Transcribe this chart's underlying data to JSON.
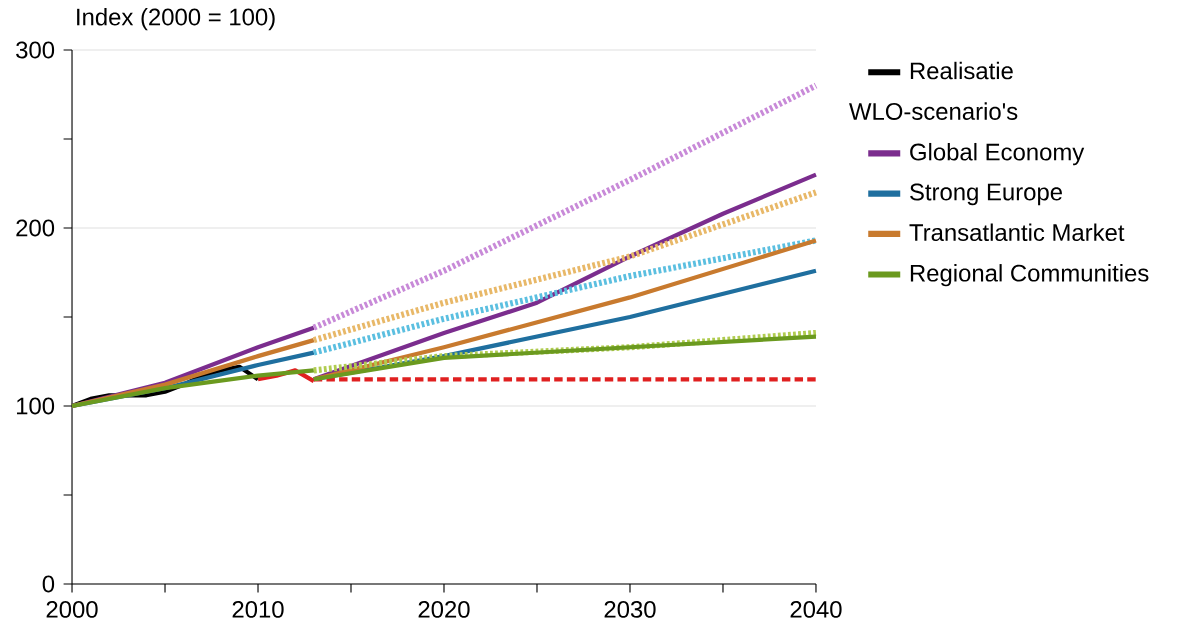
{
  "chart_data": {
    "type": "line",
    "ylabel": "Index (2000 = 100)",
    "legend_title": "WLO-scenario's",
    "legend": "right",
    "grid": "y",
    "xlim": [
      2000,
      2040
    ],
    "ylim": [
      0,
      300
    ],
    "xticks": [
      2000,
      {
        "value": 2005,
        "label": null
      },
      2010,
      {
        "value": 2015,
        "label": null
      },
      2020,
      {
        "value": 2025,
        "label": null
      },
      2030,
      {
        "value": 2035,
        "label": null
      },
      2040
    ],
    "yticks": [
      0,
      {
        "value": 50,
        "label": null
      },
      100,
      {
        "value": 150,
        "label": null
      },
      200,
      {
        "value": 250,
        "label": null
      },
      300
    ],
    "series": [
      {
        "name": "Realisatie",
        "color": "#000000",
        "x": [
          2000,
          2001,
          2002,
          2003,
          2004,
          2005,
          2006,
          2007,
          2008,
          2009,
          2010
        ],
        "values": [
          100,
          104,
          106,
          106,
          106,
          108,
          112,
          117,
          120,
          122,
          115
        ]
      },
      {
        "color": "#e02020",
        "x": [
          2010,
          2011,
          2012,
          2013
        ],
        "values": [
          115,
          117,
          120,
          114
        ]
      },
      {
        "color": "#e02020",
        "line_style": "dashed",
        "x": [
          2013,
          2040
        ],
        "values": [
          115,
          115
        ]
      },
      {
        "color": "#7b2d8e",
        "x": [
          2000,
          2005,
          2010,
          2013
        ],
        "values": [
          100,
          113,
          133,
          144
        ]
      },
      {
        "color": "#c88ad8",
        "line_style": "dotted",
        "x": [
          2013,
          2020,
          2030,
          2040
        ],
        "values": [
          144,
          176,
          227,
          280
        ]
      },
      {
        "name": "Global Economy",
        "color": "#7b2d8e",
        "x": [
          2013,
          2020,
          2025,
          2030,
          2035,
          2040
        ],
        "values": [
          115,
          141,
          158,
          184,
          208,
          230
        ]
      },
      {
        "color": "#1f6f9f",
        "x": [
          2000,
          2005,
          2010,
          2013
        ],
        "values": [
          100,
          110,
          123,
          130
        ]
      },
      {
        "color": "#5bbfe0",
        "line_style": "dotted",
        "x": [
          2013,
          2020,
          2030,
          2040
        ],
        "values": [
          130,
          149,
          173,
          193
        ]
      },
      {
        "name": "Strong Europe",
        "color": "#1f6f9f",
        "x": [
          2013,
          2020,
          2030,
          2040
        ],
        "values": [
          115,
          128,
          150,
          176
        ]
      },
      {
        "color": "#c87a2e",
        "x": [
          2000,
          2005,
          2010,
          2013
        ],
        "values": [
          100,
          112,
          128,
          137
        ]
      },
      {
        "color": "#e8b868",
        "line_style": "dotted",
        "x": [
          2013,
          2020,
          2030,
          2040
        ],
        "values": [
          137,
          158,
          184,
          220
        ]
      },
      {
        "name": "Transatlantic Market",
        "color": "#c87a2e",
        "x": [
          2013,
          2020,
          2030,
          2040
        ],
        "values": [
          115,
          133,
          161,
          193
        ]
      },
      {
        "color": "#6b9a1f",
        "x": [
          2000,
          2005,
          2010,
          2013
        ],
        "values": [
          100,
          110,
          117,
          120
        ]
      },
      {
        "color": "#b0cc50",
        "line_style": "dotted",
        "x": [
          2013,
          2020,
          2030,
          2040
        ],
        "values": [
          120,
          128,
          133,
          141
        ]
      },
      {
        "name": "Regional Communities",
        "color": "#6b9a1f",
        "x": [
          2013,
          2020,
          2030,
          2040
        ],
        "values": [
          115,
          127,
          133,
          139
        ]
      }
    ]
  }
}
